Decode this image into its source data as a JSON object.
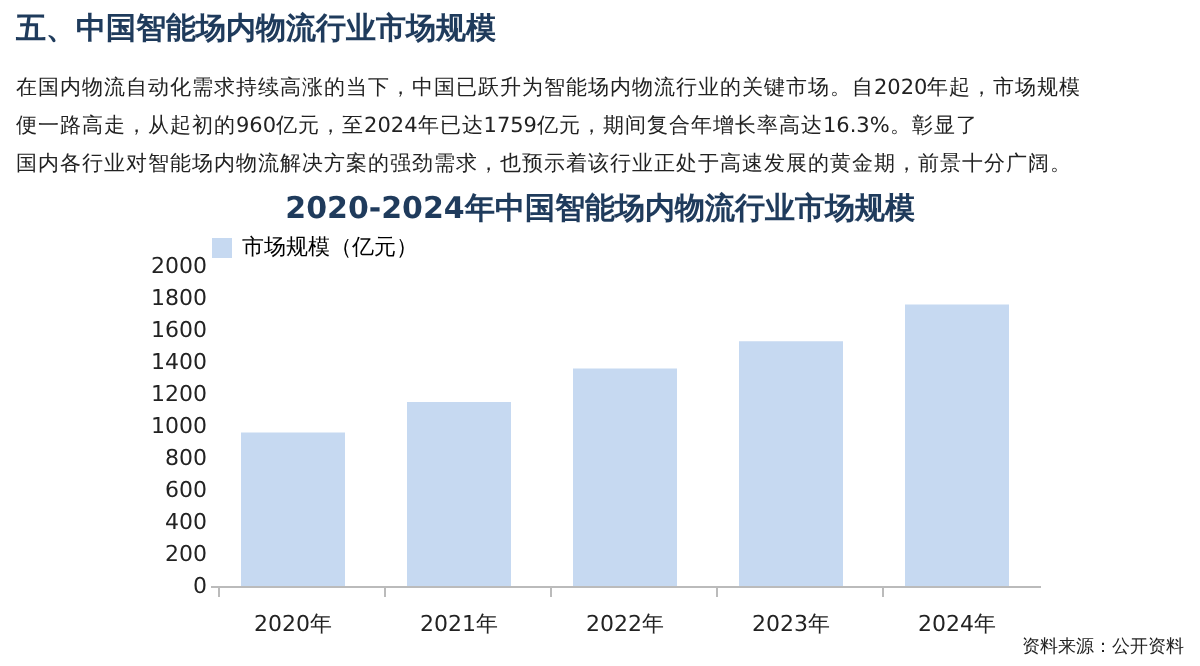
{
  "chart_data": {
    "type": "bar",
    "title": "2020-2024年中国智能场内物流行业市场规模",
    "categories": [
      "2020年",
      "2021年",
      "2022年",
      "2023年",
      "2024年"
    ],
    "series": [
      {
        "name": "市场规模（亿元）",
        "color": "#c6d9f1",
        "values": [
          960,
          1150,
          1360,
          1530,
          1759
        ]
      }
    ],
    "ylim": [
      0,
      2000
    ],
    "yticks": [
      0,
      200,
      400,
      600,
      800,
      1000,
      1200,
      1400,
      1600,
      1800,
      2000
    ],
    "grid": false,
    "legend": "top",
    "annotations": [
      "五、中国智能场内物流行业市场规模",
      "在国内物流自动化需求持续高涨的当下，中国已跃升为智能场内物流行业的关键市场。自2020年起，市场规模便一路高走，从起初的960亿元，至2024年已达1759亿元，期间复合年增长率高达16.3%。彰显了国内各行业对智能场内物流解决方案的强劲需求，也预示着该行业正处于高速发展的黄金期，前景十分广阔。",
      "资料来源：公开资料"
    ]
  }
}
